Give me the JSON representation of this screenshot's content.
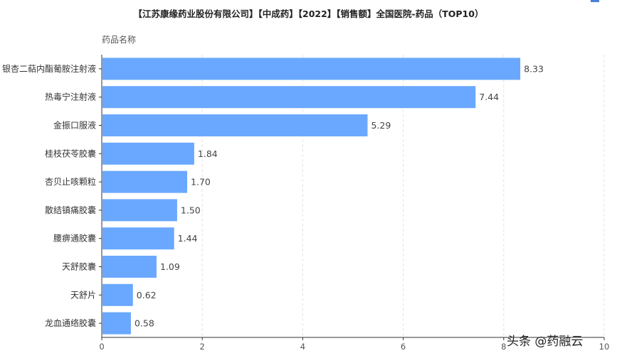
{
  "page": {
    "watermark": "头条 @药融云"
  },
  "chart_data": {
    "type": "bar",
    "orientation": "horizontal",
    "title": "【江苏康缘药业股份有限公司】【中成药】【2022】【销售额】全国医院-药品（TOP10）",
    "ylabel": "药品名称",
    "xlabel": "",
    "categories": [
      "银杏二萜内酯葡胺注射液",
      "热毒宁注射液",
      "金振口服液",
      "桂枝茯苓胶囊",
      "杏贝止咳颗粒",
      "散结镇痛胶囊",
      "腰痹通胶囊",
      "天舒胶囊",
      "天舒片",
      "龙血通络胶囊"
    ],
    "values": [
      8.33,
      7.44,
      5.29,
      1.84,
      1.7,
      1.5,
      1.44,
      1.09,
      0.62,
      0.58
    ],
    "value_labels": [
      "8.33",
      "7.44",
      "5.29",
      "1.84",
      "1.70",
      "1.50",
      "1.44",
      "1.09",
      "0.62",
      "0.58"
    ],
    "xlim": [
      0,
      10
    ],
    "xticks": [
      "0",
      "2",
      "4",
      "6",
      "8",
      "10"
    ],
    "grid": "vertical dashed",
    "colors": {
      "bar": "#6aa8ff",
      "grid": "#e3e3e3",
      "axis": "#333333"
    }
  }
}
